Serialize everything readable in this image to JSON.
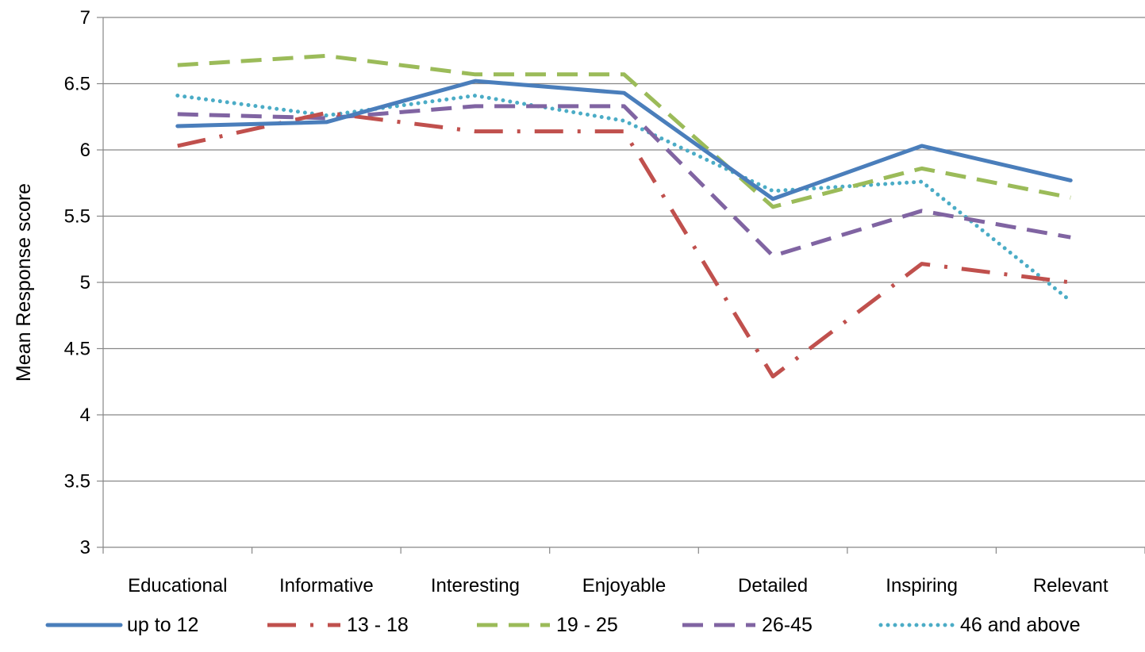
{
  "chart_data": {
    "type": "line",
    "title": "",
    "xlabel": "",
    "ylabel": "Mean Response score",
    "ylim": [
      3,
      7
    ],
    "yticks": [
      "3",
      "3.5",
      "4",
      "4.5",
      "5",
      "5.5",
      "6",
      "6.5",
      "7"
    ],
    "grid": true,
    "legend_position": "bottom",
    "categories": [
      "Educational",
      "Informative",
      "Interesting",
      "Enjoyable",
      "Detailed",
      "Inspiring",
      "Relevant"
    ],
    "series": [
      {
        "name": "up to 12",
        "color": "#4a7ebb",
        "style": "solid",
        "values": [
          6.18,
          6.21,
          6.52,
          6.43,
          5.63,
          6.03,
          5.77
        ]
      },
      {
        "name": "13 - 18",
        "color": "#c0504d",
        "style": "long-dash-dot",
        "values": [
          6.03,
          6.28,
          6.14,
          6.14,
          4.29,
          5.14,
          5.0
        ]
      },
      {
        "name": "19 - 25",
        "color": "#9bbb59",
        "style": "dash",
        "values": [
          6.64,
          6.71,
          6.57,
          6.57,
          5.57,
          5.86,
          5.64
        ]
      },
      {
        "name": "26-45",
        "color": "#8064a2",
        "style": "dash",
        "values": [
          6.27,
          6.24,
          6.33,
          6.33,
          5.2,
          5.54,
          5.34
        ]
      },
      {
        "name": "46 and above",
        "color": "#4bacc6",
        "style": "dot",
        "values": [
          6.41,
          6.26,
          6.41,
          6.22,
          5.69,
          5.76,
          4.86
        ]
      }
    ]
  }
}
